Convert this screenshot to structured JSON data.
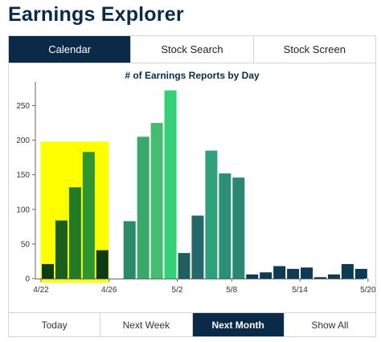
{
  "app": {
    "title": "Earnings Explorer"
  },
  "tabs": [
    {
      "label": "Calendar",
      "active": true
    },
    {
      "label": "Stock Search",
      "active": false
    },
    {
      "label": "Stock Screen",
      "active": false
    }
  ],
  "range_buttons": [
    {
      "label": "Today",
      "active": false
    },
    {
      "label": "Next Week",
      "active": false
    },
    {
      "label": "Next Month",
      "active": true
    },
    {
      "label": "Show All",
      "active": false
    }
  ],
  "colors": {
    "navy": "#0b2a47",
    "highlight": "#ffff00"
  },
  "chart_data": {
    "type": "bar",
    "title": "# of Earnings Reports by Day",
    "xlabel": "",
    "ylabel": "",
    "ylim": [
      0,
      275
    ],
    "yticks": [
      0,
      50,
      100,
      150,
      200,
      250
    ],
    "grid": false,
    "highlight_range": {
      "from_index": 0,
      "to_index": 5,
      "y_top": 198,
      "color": "#ffff00"
    },
    "xtick_labels": [
      {
        "index": 0,
        "label": "4/22"
      },
      {
        "index": 5,
        "label": "4/26"
      },
      {
        "index": 10,
        "label": "5/2"
      },
      {
        "index": 14,
        "label": "5/8"
      },
      {
        "index": 19,
        "label": "5/14"
      },
      {
        "index": 24,
        "label": "5/20"
      }
    ],
    "values": [
      21,
      84,
      132,
      183,
      41,
      83,
      205,
      225,
      272,
      37,
      91,
      185,
      152,
      146,
      6,
      9,
      18,
      14,
      16,
      2,
      6,
      21,
      14
    ],
    "bar_colors": [
      "#0e3b12",
      "#1a5e1c",
      "#227a24",
      "#2e9631",
      "#0e3b12",
      "#2a8a6a",
      "#3aa86a",
      "#44bd72",
      "#34d078",
      "#1f5f62",
      "#23686a",
      "#2ea07a",
      "#2c9077",
      "#2a8872",
      "#0e3a55",
      "#0e3a55",
      "#0e3a55",
      "#0e3a55",
      "#0e3a55",
      "#0e3a55",
      "#0e3a55",
      "#0e3a55",
      "#0e3a55"
    ],
    "bar_positions": [
      0,
      1,
      2,
      3,
      4,
      6,
      7,
      8,
      9,
      10,
      11,
      12,
      13,
      14,
      15,
      16,
      17,
      18,
      19,
      20,
      21,
      22,
      23
    ]
  }
}
